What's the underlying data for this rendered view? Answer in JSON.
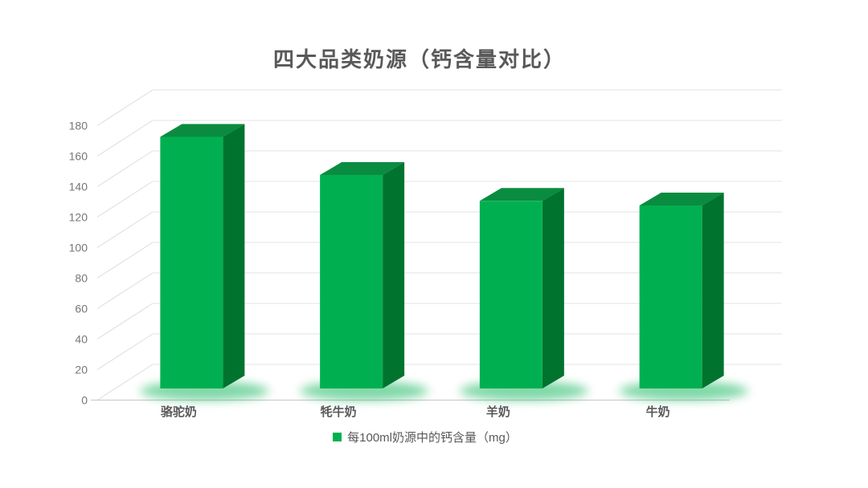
{
  "page": {
    "background": "#ffffff"
  },
  "chart_data": {
    "type": "bar",
    "style": "3d-column",
    "title": "四大品类奶源（钙含量对比）",
    "categories": [
      "骆驼奶",
      "牦牛奶",
      "羊奶",
      "牛奶"
    ],
    "series": [
      {
        "name": "每100ml奶源中的钙含量（mg）",
        "values": [
          165,
          140,
          123,
          120
        ]
      }
    ],
    "xlabel": "",
    "ylabel": "",
    "ylim": [
      0,
      180
    ],
    "y_ticks": [
      0,
      20,
      40,
      60,
      80,
      100,
      120,
      140,
      160,
      180
    ],
    "grid": true,
    "legend_position": "bottom",
    "colors": {
      "bar_front": "#00B050",
      "bar_top": "#0A8C40",
      "bar_side": "#00732F",
      "glow": "#00B050",
      "grid": "#E3E3E3",
      "axis": "#CDCDCD",
      "title_text": "#595959",
      "tick_text": "#767676",
      "category_text": "#595959",
      "legend_text": "#595959"
    }
  },
  "legend": {
    "label": "每100ml奶源中的钙含量（mg）",
    "swatch_color": "#00B050"
  }
}
